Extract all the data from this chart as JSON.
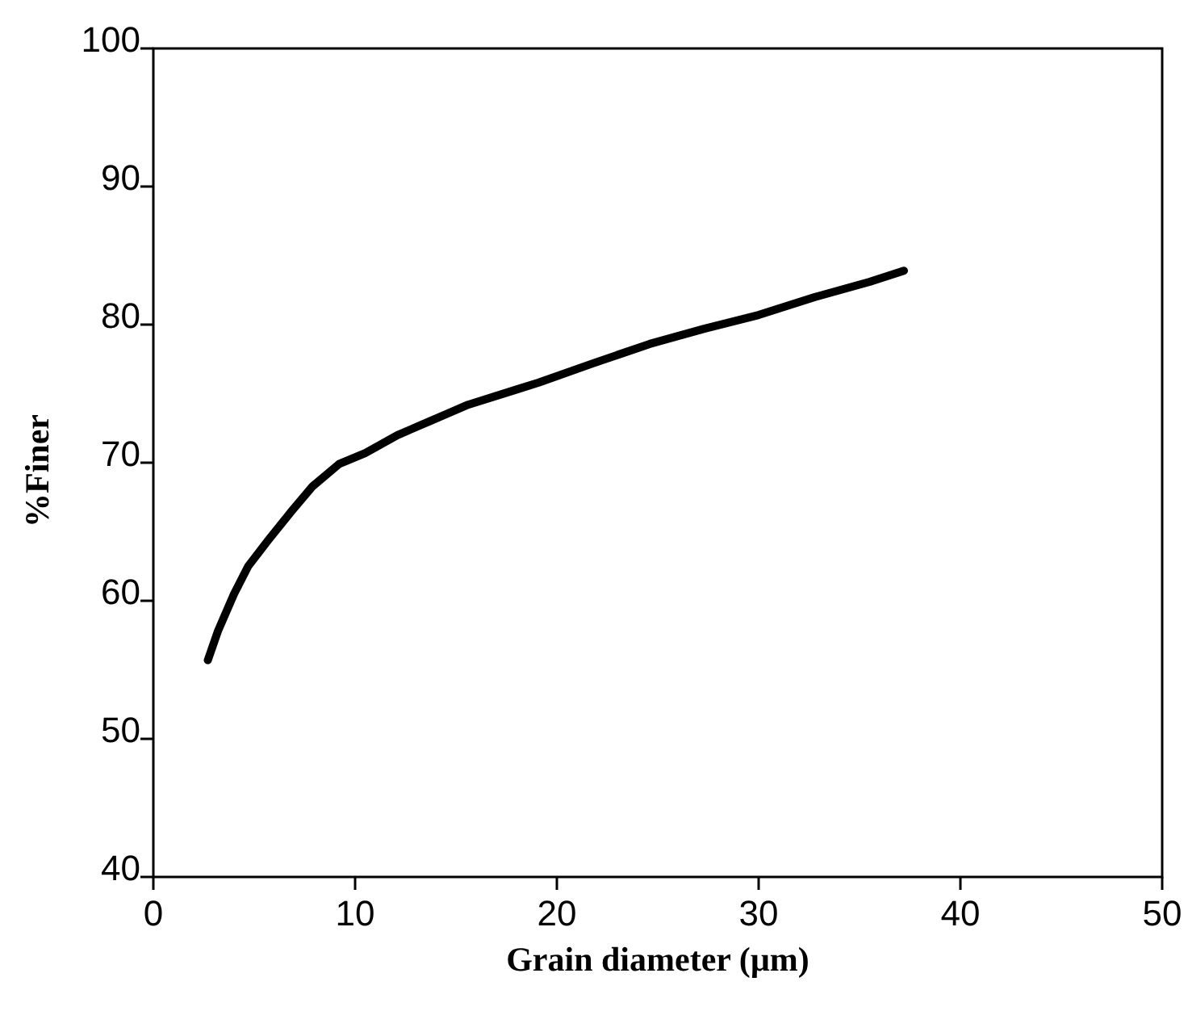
{
  "chart_data": {
    "type": "line",
    "xlabel": "Grain diameter (µm)",
    "ylabel": "%Finer",
    "xlim": [
      0,
      50
    ],
    "xticks": [
      0,
      10,
      20,
      30,
      40,
      50
    ],
    "ylim": [
      40,
      100
    ],
    "yticks": [
      40,
      50,
      60,
      70,
      80,
      90,
      100
    ],
    "grid": false,
    "marker": "none",
    "line_style": "solid",
    "series": [
      {
        "color": "#000000",
        "x": [
          2.7,
          3.2,
          4.0,
          4.7,
          5.7,
          6.8,
          7.9,
          9.2,
          10.5,
          12.1,
          13.7,
          15.6,
          18.0,
          19.1,
          21.8,
          24.6,
          27.3,
          30.0,
          32.8,
          35.5,
          37.2
        ],
        "values": [
          55.7,
          57.8,
          60.5,
          62.5,
          64.4,
          66.4,
          68.3,
          69.9,
          70.7,
          72.0,
          73.0,
          74.2,
          75.3,
          75.8,
          77.2,
          78.6,
          79.7,
          80.7,
          82.0,
          83.1,
          83.9
        ]
      }
    ]
  }
}
